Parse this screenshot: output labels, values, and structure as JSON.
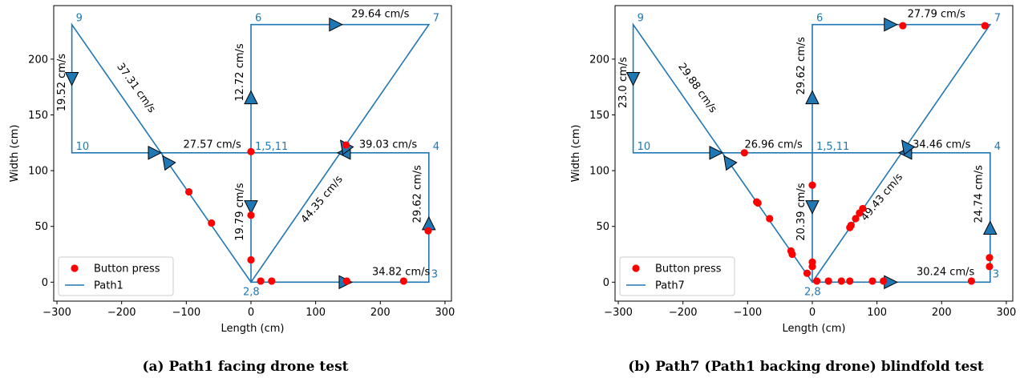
{
  "chart_data": [
    {
      "type": "scatter",
      "caption": "(a) Path1 facing drone test",
      "xlabel": "Length (cm)",
      "ylabel": "Width (cm)",
      "xlim": [
        -305,
        310
      ],
      "ylim": [
        -17,
        248
      ],
      "xticks": [
        -300,
        -200,
        -100,
        0,
        100,
        200,
        300
      ],
      "xtick_labels": [
        "−300",
        "−200",
        "−100",
        "0",
        "100",
        "200",
        "300"
      ],
      "yticks": [
        0,
        50,
        100,
        150,
        200
      ],
      "ytick_labels": [
        "0",
        "50",
        "100",
        "150",
        "200"
      ],
      "legend": {
        "position": "lower-left",
        "entries": [
          "Button press",
          "Path1"
        ]
      },
      "path_color": "#1f77b4",
      "press_color": "#ff0000",
      "nodes": [
        {
          "label": "9",
          "x": -277,
          "y": 231
        },
        {
          "label": "6",
          "x": 0,
          "y": 231
        },
        {
          "label": "7",
          "x": 275,
          "y": 231
        },
        {
          "label": "10",
          "x": -277,
          "y": 116
        },
        {
          "label": "1,5,11",
          "x": 0,
          "y": 116
        },
        {
          "label": "4",
          "x": 275,
          "y": 116
        },
        {
          "label": "2,8",
          "x": 0,
          "y": 0
        },
        {
          "label": "3",
          "x": 275,
          "y": 0
        }
      ],
      "path": [
        [
          0,
          116
        ],
        [
          0,
          0
        ],
        [
          275,
          0
        ],
        [
          275,
          116
        ],
        [
          0,
          116
        ],
        [
          0,
          231
        ],
        [
          275,
          231
        ],
        [
          0,
          0
        ],
        [
          -277,
          231
        ],
        [
          -277,
          116
        ],
        [
          0,
          116
        ]
      ],
      "arrows": [
        {
          "x": 0,
          "y": 68,
          "dir": "down"
        },
        {
          "x": 145,
          "y": 0,
          "dir": "right"
        },
        {
          "x": 275,
          "y": 52,
          "dir": "up"
        },
        {
          "x": 145,
          "y": 116,
          "dir": "left"
        },
        {
          "x": 0,
          "y": 165,
          "dir": "up"
        },
        {
          "x": 130,
          "y": 231,
          "dir": "right"
        },
        {
          "x": 145,
          "y": 122,
          "dir": "up-left"
        },
        {
          "x": -130,
          "y": 108,
          "dir": "up-left"
        },
        {
          "x": -277,
          "y": 183,
          "dir": "down"
        },
        {
          "x": -150,
          "y": 116,
          "dir": "right"
        }
      ],
      "segment_labels": [
        {
          "text": "37.31 cm/s",
          "x": -178,
          "y": 174,
          "angle": 54.5
        },
        {
          "text": "12.72 cm/s",
          "x": -17,
          "y": 188,
          "angle": -90
        },
        {
          "text": "29.64 cm/s",
          "x": 200,
          "y": 240,
          "angle": 0
        },
        {
          "text": "19.52 cm/s",
          "x": -292,
          "y": 179,
          "angle": -90
        },
        {
          "text": "27.57 cm/s",
          "x": -60,
          "y": 123,
          "angle": 0
        },
        {
          "text": "39.03 cm/s",
          "x": 212,
          "y": 123,
          "angle": 0
        },
        {
          "text": "19.79 cm/s",
          "x": -17,
          "y": 63,
          "angle": -90
        },
        {
          "text": "44.35 cm/s",
          "x": 110,
          "y": 74,
          "angle": -50
        },
        {
          "text": "29.62 cm/s",
          "x": 258,
          "y": 79,
          "angle": -90
        },
        {
          "text": "34.82 cm/s",
          "x": 232,
          "y": 9,
          "angle": 0
        }
      ],
      "button_presses": [
        [
          0,
          117
        ],
        [
          0,
          60
        ],
        [
          0,
          20
        ],
        [
          15,
          1
        ],
        [
          32,
          1
        ],
        [
          148,
          1
        ],
        [
          236,
          1
        ],
        [
          147,
          123
        ],
        [
          274,
          46
        ],
        [
          -96,
          81
        ],
        [
          -61,
          53
        ]
      ]
    },
    {
      "type": "scatter",
      "caption": "(b) Path7 (Path1 backing drone) blindfold test",
      "xlabel": "Length (cm)",
      "ylabel": "Width (cm)",
      "xlim": [
        -305,
        310
      ],
      "ylim": [
        -17,
        248
      ],
      "xticks": [
        -300,
        -200,
        -100,
        0,
        100,
        200,
        300
      ],
      "xtick_labels": [
        "−300",
        "−200",
        "−100",
        "0",
        "100",
        "200",
        "300"
      ],
      "yticks": [
        0,
        50,
        100,
        150,
        200
      ],
      "ytick_labels": [
        "0",
        "50",
        "100",
        "150",
        "200"
      ],
      "legend": {
        "position": "lower-left",
        "entries": [
          "Button press",
          "Path7"
        ]
      },
      "path_color": "#1f77b4",
      "press_color": "#ff0000",
      "nodes": [
        {
          "label": "9",
          "x": -277,
          "y": 231
        },
        {
          "label": "6",
          "x": 0,
          "y": 231
        },
        {
          "label": "7",
          "x": 275,
          "y": 231
        },
        {
          "label": "10",
          "x": -277,
          "y": 116
        },
        {
          "label": "1,5,11",
          "x": 0,
          "y": 116
        },
        {
          "label": "4",
          "x": 275,
          "y": 116
        },
        {
          "label": "2,8",
          "x": 0,
          "y": 0
        },
        {
          "label": "3",
          "x": 275,
          "y": 0
        }
      ],
      "path": [
        [
          0,
          116
        ],
        [
          0,
          0
        ],
        [
          275,
          0
        ],
        [
          275,
          116
        ],
        [
          0,
          116
        ],
        [
          0,
          231
        ],
        [
          275,
          231
        ],
        [
          0,
          0
        ],
        [
          -277,
          231
        ],
        [
          -277,
          116
        ],
        [
          0,
          116
        ]
      ],
      "arrows": [
        {
          "x": 0,
          "y": 68,
          "dir": "down"
        },
        {
          "x": 120,
          "y": 0,
          "dir": "right"
        },
        {
          "x": 275,
          "y": 48,
          "dir": "up"
        },
        {
          "x": 145,
          "y": 116,
          "dir": "left"
        },
        {
          "x": 0,
          "y": 165,
          "dir": "up"
        },
        {
          "x": 120,
          "y": 231,
          "dir": "right"
        },
        {
          "x": 145,
          "y": 122,
          "dir": "up-left"
        },
        {
          "x": -130,
          "y": 108,
          "dir": "up-left"
        },
        {
          "x": -277,
          "y": 183,
          "dir": "down"
        },
        {
          "x": -150,
          "y": 116,
          "dir": "right"
        }
      ],
      "segment_labels": [
        {
          "text": "29.88 cm/s",
          "x": -178,
          "y": 174,
          "angle": 54.5
        },
        {
          "text": "29.62 cm/s",
          "x": -17,
          "y": 194,
          "angle": -90
        },
        {
          "text": "27.79 cm/s",
          "x": 192,
          "y": 240,
          "angle": 0
        },
        {
          "text": "23.0 cm/s",
          "x": -292,
          "y": 179,
          "angle": -90
        },
        {
          "text": "26.96 cm/s",
          "x": -60,
          "y": 123,
          "angle": 0
        },
        {
          "text": "34.46 cm/s",
          "x": 200,
          "y": 123,
          "angle": 0
        },
        {
          "text": "20.39 cm/s",
          "x": -17,
          "y": 63,
          "angle": -90
        },
        {
          "text": "49.43 cm/s",
          "x": 108,
          "y": 76,
          "angle": -50
        },
        {
          "text": "24.74 cm/s",
          "x": 258,
          "y": 79,
          "angle": -90
        },
        {
          "text": "30.24 cm/s",
          "x": 206,
          "y": 9,
          "angle": 0
        }
      ],
      "button_presses": [
        [
          -105,
          116
        ],
        [
          0,
          87
        ],
        [
          0,
          18
        ],
        [
          0,
          14
        ],
        [
          -8,
          8
        ],
        [
          7,
          1
        ],
        [
          25,
          1
        ],
        [
          45,
          1
        ],
        [
          58,
          1
        ],
        [
          93,
          1
        ],
        [
          110,
          1
        ],
        [
          246,
          1
        ],
        [
          140,
          230
        ],
        [
          267,
          230
        ],
        [
          274,
          22
        ],
        [
          274,
          14
        ],
        [
          -86,
          72
        ],
        [
          -84,
          71
        ],
        [
          -66,
          57
        ],
        [
          -33,
          28
        ],
        [
          -31,
          25
        ],
        [
          58,
          49
        ],
        [
          60,
          51
        ],
        [
          67,
          57
        ],
        [
          73,
          62
        ],
        [
          78,
          66
        ]
      ]
    }
  ]
}
